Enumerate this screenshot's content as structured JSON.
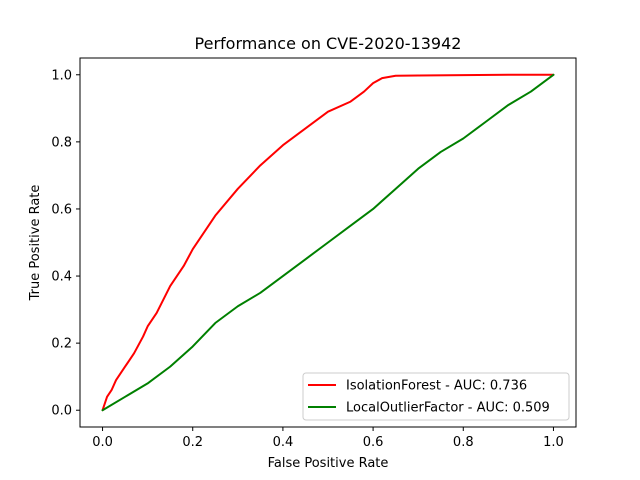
{
  "chart_data": {
    "type": "line",
    "title": "Performance on CVE-2020-13942",
    "xlabel": "False Positive Rate",
    "ylabel": "True Positive Rate",
    "xlim": [
      -0.05,
      1.05
    ],
    "ylim": [
      -0.05,
      1.05
    ],
    "xticks": [
      0.0,
      0.2,
      0.4,
      0.6,
      0.8,
      1.0
    ],
    "yticks": [
      0.0,
      0.2,
      0.4,
      0.6,
      0.8,
      1.0
    ],
    "xtick_labels": [
      "0.0",
      "0.2",
      "0.4",
      "0.6",
      "0.8",
      "1.0"
    ],
    "ytick_labels": [
      "0.0",
      "0.2",
      "0.4",
      "0.6",
      "0.8",
      "1.0"
    ],
    "grid": false,
    "legend_position": "lower-right",
    "series": [
      {
        "name": "IsolationForest - AUC: 0.736",
        "color": "#ff0000",
        "x": [
          0.0,
          0.01,
          0.02,
          0.03,
          0.05,
          0.07,
          0.09,
          0.1,
          0.12,
          0.15,
          0.18,
          0.2,
          0.25,
          0.3,
          0.35,
          0.4,
          0.45,
          0.5,
          0.55,
          0.58,
          0.6,
          0.62,
          0.65,
          0.7,
          0.8,
          0.9,
          1.0
        ],
        "y": [
          0.0,
          0.04,
          0.06,
          0.09,
          0.13,
          0.17,
          0.22,
          0.25,
          0.29,
          0.37,
          0.43,
          0.48,
          0.58,
          0.66,
          0.73,
          0.79,
          0.84,
          0.89,
          0.92,
          0.95,
          0.975,
          0.99,
          0.997,
          0.998,
          0.999,
          1.0,
          1.0
        ]
      },
      {
        "name": "LocalOutlierFactor - AUC: 0.509",
        "color": "#008000",
        "x": [
          0.0,
          0.05,
          0.1,
          0.15,
          0.2,
          0.25,
          0.3,
          0.35,
          0.4,
          0.45,
          0.5,
          0.55,
          0.6,
          0.65,
          0.7,
          0.75,
          0.8,
          0.85,
          0.9,
          0.95,
          1.0
        ],
        "y": [
          0.0,
          0.04,
          0.08,
          0.13,
          0.19,
          0.26,
          0.31,
          0.35,
          0.4,
          0.45,
          0.5,
          0.55,
          0.6,
          0.66,
          0.72,
          0.77,
          0.81,
          0.86,
          0.91,
          0.95,
          1.0
        ]
      }
    ]
  }
}
